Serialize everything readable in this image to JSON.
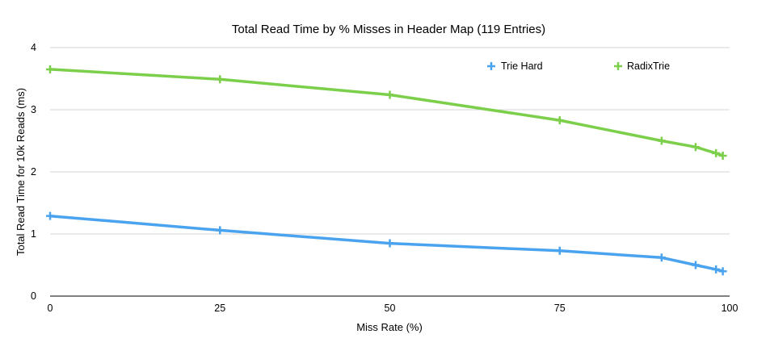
{
  "chart_data": {
    "type": "line",
    "title": "Total Read Time by % Misses in Header Map (119 Entries)",
    "xlabel": "Miss Rate (%)",
    "ylabel": "Total Read Time for 10k Reads (ms)",
    "xlim": [
      0,
      100
    ],
    "ylim": [
      0,
      4
    ],
    "xticks": [
      0,
      25,
      50,
      75,
      100
    ],
    "yticks": [
      0,
      1,
      2,
      3,
      4
    ],
    "grid": "horizontal",
    "legend_position": "top-right",
    "x": [
      0,
      25,
      50,
      75,
      90,
      95,
      98,
      99
    ],
    "series": [
      {
        "name": "Trie Hard",
        "color": "#4aa3ee",
        "values": [
          1.29,
          1.06,
          0.85,
          0.73,
          0.62,
          0.5,
          0.43,
          0.4
        ]
      },
      {
        "name": "RadixTrie",
        "color": "#7ccf4a",
        "values": [
          3.65,
          3.49,
          3.24,
          2.83,
          2.5,
          2.4,
          2.3,
          2.26
        ]
      }
    ]
  }
}
